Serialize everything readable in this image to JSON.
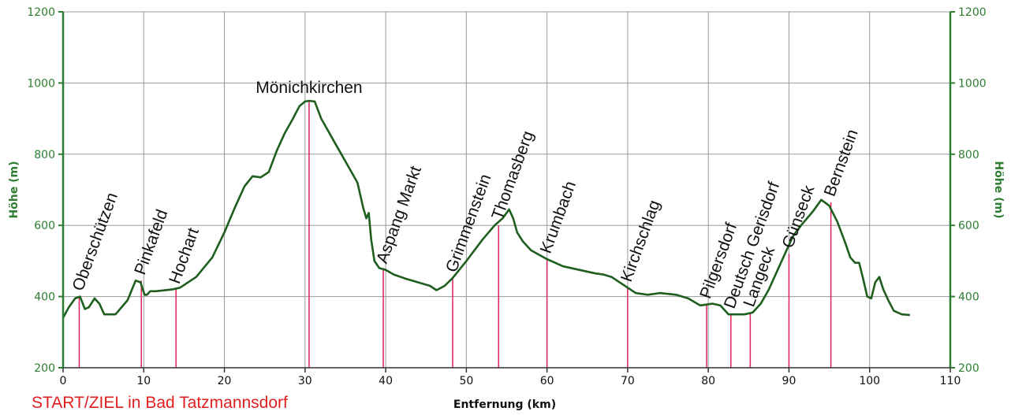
{
  "colors": {
    "profile": "#1e5e1e",
    "marker": "#e0225a",
    "grid": "#9a9a9a",
    "axis_green": "#2e7d32",
    "start_red": "#e02020"
  },
  "chart_data": {
    "type": "line",
    "xlabel": "Entfernung (km)",
    "ylabel_left": "Höhe (m)",
    "ylabel_right": "Höhe (m)",
    "xlim": [
      0,
      110
    ],
    "ylim": [
      200,
      1200
    ],
    "x_ticks": [
      0,
      10,
      20,
      30,
      40,
      50,
      60,
      70,
      80,
      90,
      100,
      110
    ],
    "y_ticks": [
      200,
      400,
      600,
      800,
      1000,
      1200
    ],
    "grid": true,
    "start_label": "START/ZIEL in Bad Tatzmannsdorf",
    "series": [
      {
        "x": [
          0,
          0.7,
          1.5,
          2.1,
          2.7,
          3.2,
          3.9,
          4.5,
          5.1,
          6.5,
          8.0,
          9.0,
          9.6,
          10.1,
          10.4,
          10.8,
          11.5,
          13.5,
          14.5,
          16.5,
          18.5,
          20.0,
          21.3,
          22.5,
          23.5,
          24.5,
          25.5,
          26.5,
          27.5,
          28.5,
          29.3,
          30.0,
          30.5,
          31.2,
          32.0,
          33.0,
          34.0,
          35.5,
          36.5,
          37.2,
          37.6,
          37.9,
          38.2,
          38.6,
          39.2,
          40.0,
          41.0,
          42.5,
          44.0,
          45.5,
          46.3,
          47.3,
          48.3,
          50.0,
          52.0,
          53.5,
          54.5,
          55.3,
          55.8,
          56.3,
          57.0,
          58.0,
          60.0,
          62.0,
          64.0,
          66.0,
          67.0,
          68.0,
          70.0,
          71.0,
          72.5,
          74.0,
          76.0,
          77.5,
          79.0,
          80.5,
          81.5,
          82.5,
          83.5,
          84.5,
          85.5,
          86.5,
          87.5,
          88.5,
          89.5,
          90.5,
          91.5,
          93.0,
          94.0,
          95.0,
          96.0,
          97.0,
          97.6,
          98.2,
          98.7,
          99.2,
          99.7,
          100.2,
          100.7,
          101.2,
          101.7,
          102.3,
          103.0,
          104.0,
          105.0
        ],
        "y": [
          340,
          370,
          395,
          400,
          365,
          370,
          395,
          380,
          350,
          350,
          390,
          445,
          440,
          405,
          405,
          415,
          415,
          420,
          425,
          455,
          510,
          580,
          650,
          710,
          738,
          735,
          750,
          810,
          860,
          900,
          935,
          948,
          950,
          948,
          900,
          860,
          820,
          760,
          720,
          650,
          620,
          635,
          560,
          500,
          480,
          475,
          462,
          450,
          440,
          430,
          418,
          430,
          452,
          500,
          560,
          600,
          620,
          645,
          620,
          580,
          555,
          530,
          505,
          485,
          475,
          465,
          462,
          455,
          425,
          410,
          405,
          410,
          405,
          395,
          375,
          380,
          375,
          350,
          350,
          350,
          355,
          380,
          420,
          470,
          520,
          570,
          600,
          640,
          672,
          655,
          610,
          550,
          510,
          495,
          495,
          450,
          400,
          395,
          440,
          455,
          420,
          390,
          360,
          350,
          348
        ]
      }
    ],
    "places": [
      {
        "name": "Oberschützen",
        "x": 2,
        "y": 400
      },
      {
        "name": "Pinkafeld",
        "x": 9.7,
        "y": 445
      },
      {
        "name": "Hochart",
        "x": 14,
        "y": 420
      },
      {
        "name": "Mönichkirchen",
        "x": 30.5,
        "y": 950
      },
      {
        "name": "Aspang Markt",
        "x": 39.7,
        "y": 477
      },
      {
        "name": "Grimmenstein",
        "x": 48.3,
        "y": 452
      },
      {
        "name": "Thomasberg",
        "x": 54,
        "y": 600
      },
      {
        "name": "Krumbach",
        "x": 60,
        "y": 505
      },
      {
        "name": "Kirchschlag",
        "x": 70,
        "y": 425
      },
      {
        "name": "Pilgersdorf",
        "x": 79.8,
        "y": 378
      },
      {
        "name": "Deutsch Gerisdorf",
        "x": 82.8,
        "y": 350
      },
      {
        "name": "Langeck",
        "x": 85.2,
        "y": 355
      },
      {
        "name": "Günseck",
        "x": 90,
        "y": 520
      },
      {
        "name": "Bernstein",
        "x": 95.2,
        "y": 665
      }
    ]
  }
}
